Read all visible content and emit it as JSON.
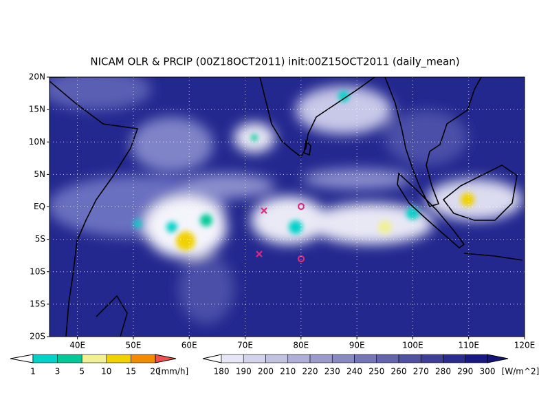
{
  "title": "NICAM OLR & PRCIP (00Z18OCT2011) init:00Z15OCT2011 (daily_mean)",
  "lon_labels": [
    "40E",
    "50E",
    "60E",
    "70E",
    "80E",
    "90E",
    "100E",
    "110E",
    "120E"
  ],
  "lat_labels": [
    "20N",
    "15N",
    "10N",
    "5N",
    "EQ",
    "5S",
    "10S",
    "15S",
    "20S"
  ],
  "precip_bar": {
    "labels": [
      "1",
      "3",
      "5",
      "10",
      "15",
      "20"
    ],
    "unit": "[mm/h]"
  },
  "olr_bar": {
    "labels": [
      "180",
      "190",
      "200",
      "210",
      "220",
      "230",
      "240",
      "250",
      "260",
      "270",
      "280",
      "290",
      "300"
    ],
    "unit": "[W/m^2]"
  }
}
